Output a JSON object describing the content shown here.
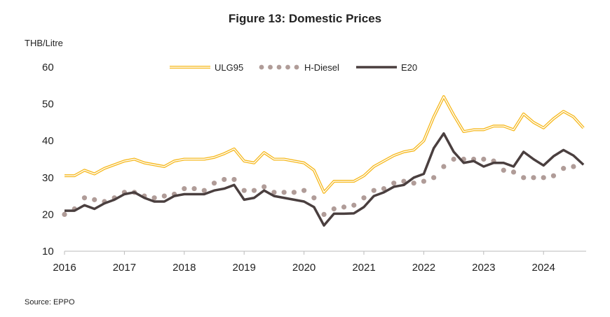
{
  "chart_data": {
    "type": "line",
    "title": "Figure 13: Domestic Prices",
    "ylabel": "THB/Litre",
    "xlabel": "",
    "source": "Source: EPPO",
    "ylim": [
      10,
      60
    ],
    "yticks": [
      "10",
      "20",
      "30",
      "40",
      "50",
      "60"
    ],
    "xticks": [
      "2016",
      "2017",
      "2018",
      "2019",
      "2020",
      "2021",
      "2022",
      "2023",
      "2024"
    ],
    "grid": false,
    "legend": "top",
    "x": [
      "2016-01",
      "2016-03",
      "2016-05",
      "2016-07",
      "2016-09",
      "2016-11",
      "2017-01",
      "2017-03",
      "2017-05",
      "2017-07",
      "2017-09",
      "2017-11",
      "2018-01",
      "2018-03",
      "2018-05",
      "2018-07",
      "2018-09",
      "2018-11",
      "2019-01",
      "2019-03",
      "2019-05",
      "2019-07",
      "2019-09",
      "2019-11",
      "2020-01",
      "2020-03",
      "2020-05",
      "2020-07",
      "2020-09",
      "2020-11",
      "2021-01",
      "2021-03",
      "2021-05",
      "2021-07",
      "2021-09",
      "2021-11",
      "2022-01",
      "2022-03",
      "2022-05",
      "2022-07",
      "2022-09",
      "2022-11",
      "2023-01",
      "2023-03",
      "2023-05",
      "2023-07",
      "2023-09",
      "2023-11",
      "2024-01",
      "2024-03",
      "2024-05",
      "2024-07",
      "2024-09"
    ],
    "series": [
      {
        "name": "ULG95",
        "color": "#f6b81c",
        "style": "double-line",
        "values": [
          30.5,
          30.5,
          32,
          31,
          32.5,
          33.5,
          34.5,
          35,
          34,
          33.5,
          33,
          34.5,
          35,
          35,
          35,
          35.5,
          36.5,
          37.8,
          34.5,
          34,
          36.8,
          35,
          35,
          34.5,
          34,
          32,
          26,
          29,
          29,
          29,
          30.5,
          33,
          34.5,
          36,
          37,
          37.5,
          40,
          46.5,
          52,
          47,
          42.5,
          43,
          43,
          44,
          44,
          43,
          47.3,
          45,
          43.5,
          46,
          48,
          46.5,
          43.5
        ]
      },
      {
        "name": "H-Diesel",
        "color": "#b09c98",
        "style": "dotted",
        "values": [
          20,
          21.5,
          24.5,
          24,
          23.5,
          24.5,
          26,
          26,
          25,
          24.5,
          25,
          25.5,
          27,
          27,
          26.5,
          28.5,
          29.5,
          29.5,
          26.5,
          26.5,
          27.5,
          26,
          26,
          26,
          26.5,
          24.5,
          20,
          21.5,
          22,
          22.5,
          24.5,
          26.5,
          27,
          28.5,
          29,
          28.5,
          29,
          30,
          33,
          35,
          35,
          35,
          35,
          34.5,
          32,
          31.5,
          30,
          30,
          30,
          30.5,
          32.5,
          33,
          null
        ]
      },
      {
        "name": "E20",
        "color": "#4a3f3f",
        "style": "line",
        "values": [
          21,
          21,
          22.5,
          21.5,
          23,
          24,
          25.5,
          26,
          24.5,
          23.5,
          23.5,
          25,
          25.5,
          25.5,
          25.5,
          26.5,
          27,
          28,
          24,
          24.5,
          26.5,
          25,
          24.5,
          24,
          23.5,
          22,
          17,
          20.2,
          20.2,
          20.3,
          22,
          25,
          26,
          27.5,
          28,
          30,
          31,
          38,
          42,
          37,
          34,
          34.5,
          33,
          34,
          34,
          33,
          37,
          35,
          33.3,
          35.8,
          37.5,
          36,
          33.5
        ]
      }
    ]
  }
}
